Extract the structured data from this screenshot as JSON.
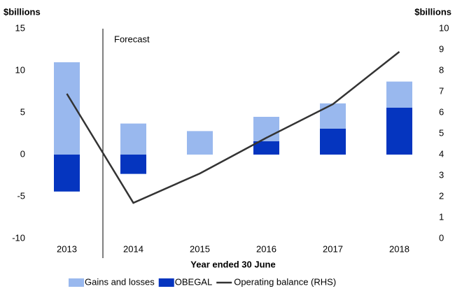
{
  "chart_data": {
    "type": "bar",
    "y_label": "$billions",
    "y2_label": "$billions",
    "x_label": "Year ended 30 June",
    "annotation": "Forecast",
    "categories": [
      "2013",
      "2014",
      "2015",
      "2016",
      "2017",
      "2018"
    ],
    "series": [
      {
        "name": "Gains and losses",
        "color": "#99b8ee",
        "values": [
          11,
          3.7,
          2.8,
          2.9,
          3.0,
          3.1
        ]
      },
      {
        "name": "OBEGAL",
        "color": "#0535bf",
        "values": [
          -4.4,
          -2.3,
          0,
          1.6,
          3.1,
          5.6
        ]
      },
      {
        "name": "Operating balance (RHS)",
        "color": "#333333",
        "type": "line",
        "axis": "y2",
        "values": [
          6.9,
          1.7,
          3.1,
          4.8,
          6.4,
          8.9
        ]
      }
    ],
    "ylim": [
      -10,
      15
    ],
    "yticks": [
      -10,
      -5,
      0,
      5,
      10,
      15
    ],
    "y2lim": [
      0,
      10
    ],
    "y2ticks": [
      0,
      1,
      2,
      3,
      4,
      5,
      6,
      7,
      8,
      9,
      10
    ],
    "legend": "bottom"
  }
}
